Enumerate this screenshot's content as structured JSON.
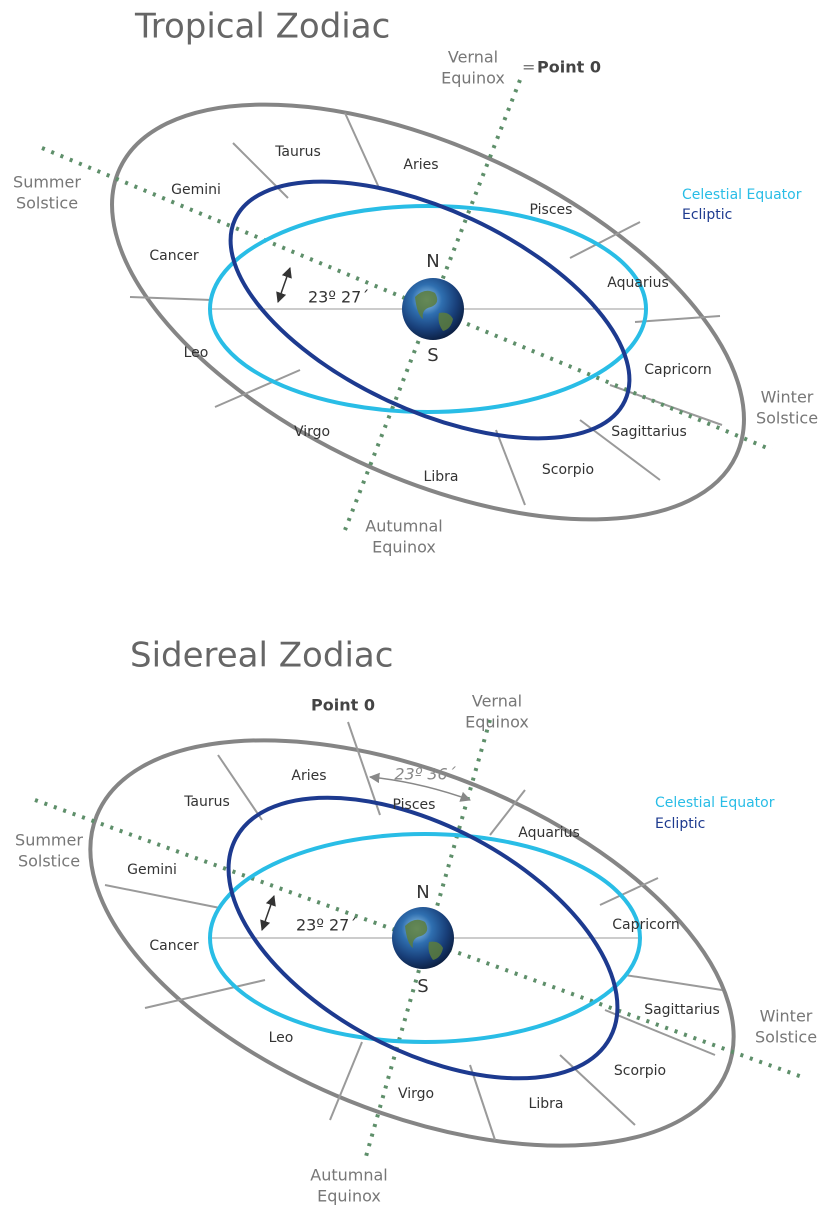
{
  "diagrams": [
    {
      "title": "Tropical Zodiac",
      "vernal_equinox": [
        "Vernal",
        "Equinox"
      ],
      "equals": "=",
      "point_zero": "Point 0",
      "summer_solstice": [
        "Summer",
        "Solstice"
      ],
      "winter_solstice": [
        "Winter",
        "Solstice"
      ],
      "autumnal_equinox": [
        "Autumnal",
        "Equinox"
      ],
      "celestial_equator": "Celestial Equator",
      "ecliptic": "Ecliptic",
      "north": "N",
      "south": "S",
      "tilt": "23º 27´",
      "signs": [
        "Taurus",
        "Aries",
        "Pisces",
        "Gemini",
        "Cancer",
        "Aquarius",
        "Leo",
        "Capricorn",
        "Virgo",
        "Sagittarius",
        "Libra",
        "Scorpio"
      ]
    },
    {
      "title": "Sidereal Zodiac",
      "point_zero": "Point 0",
      "vernal_equinox": [
        "Vernal",
        "Equinox"
      ],
      "summer_solstice": [
        "Summer",
        "Solstice"
      ],
      "winter_solstice": [
        "Winter",
        "Solstice"
      ],
      "autumnal_equinox": [
        "Autumnal",
        "Equinox"
      ],
      "celestial_equator": "Celestial Equator",
      "ecliptic": "Ecliptic",
      "north": "N",
      "south": "S",
      "tilt": "23º 27´",
      "shift": "23º 36´",
      "signs": [
        "Aries",
        "Taurus",
        "Pisces",
        "Aquarius",
        "Gemini",
        "Capricorn",
        "Cancer",
        "Sagittarius",
        "Leo",
        "Scorpio",
        "Virgo",
        "Libra"
      ]
    }
  ]
}
